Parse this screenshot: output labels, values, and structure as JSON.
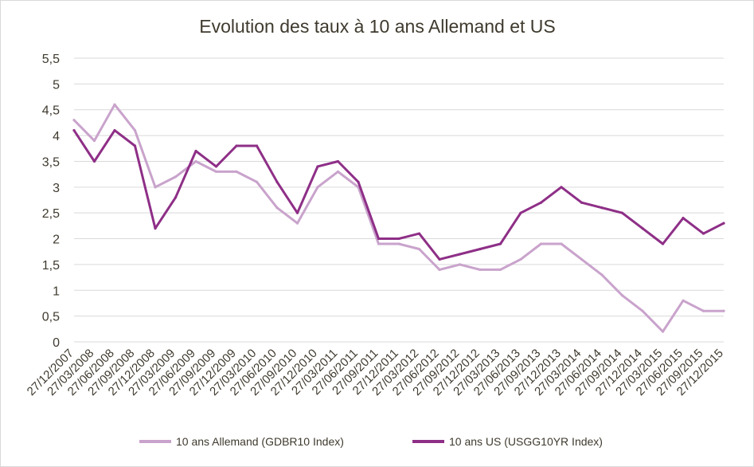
{
  "chart_data": {
    "type": "line",
    "title": "Evolution des taux à 10 ans Allemand et US",
    "xlabel": "",
    "ylabel": "",
    "ylim": [
      0,
      5.5
    ],
    "y_ticks": [
      "0",
      "0,5",
      "1",
      "1,5",
      "2",
      "2,5",
      "3",
      "3,5",
      "4",
      "4,5",
      "5",
      "5,5"
    ],
    "grid": true,
    "legend_position": "bottom",
    "categories": [
      "27/12/2007",
      "27/03/2008",
      "27/06/2008",
      "27/09/2008",
      "27/12/2008",
      "27/03/2009",
      "27/06/2009",
      "27/09/2009",
      "27/12/2009",
      "27/03/2010",
      "27/06/2010",
      "27/09/2010",
      "27/12/2010",
      "27/03/2011",
      "27/06/2011",
      "27/09/2011",
      "27/12/2011",
      "27/03/2012",
      "27/06/2012",
      "27/09/2012",
      "27/12/2012",
      "27/03/2013",
      "27/06/2013",
      "27/09/2013",
      "27/12/2013",
      "27/03/2014",
      "27/06/2014",
      "27/09/2014",
      "27/12/2014",
      "27/03/2015",
      "27/06/2015",
      "27/09/2015",
      "27/12/2015"
    ],
    "series": [
      {
        "name": "10 ans Allemand  (GDBR10 Index)",
        "color": "#c9a3cc",
        "values": [
          4.3,
          3.9,
          4.6,
          4.1,
          3.0,
          3.2,
          3.5,
          3.3,
          3.3,
          3.1,
          2.6,
          2.3,
          3.0,
          3.3,
          3.0,
          1.9,
          1.9,
          1.8,
          1.4,
          1.5,
          1.4,
          1.4,
          1.6,
          1.9,
          1.9,
          1.6,
          1.3,
          0.9,
          0.6,
          0.2,
          0.8,
          0.6,
          0.6
        ]
      },
      {
        "name": "10 ans US (USGG10YR Index)",
        "color": "#8e2f87",
        "values": [
          4.1,
          3.5,
          4.1,
          3.8,
          2.2,
          2.8,
          3.7,
          3.4,
          3.8,
          3.8,
          3.1,
          2.5,
          3.4,
          3.5,
          3.1,
          2.0,
          2.0,
          2.1,
          1.6,
          1.7,
          1.8,
          1.9,
          2.5,
          2.7,
          3.0,
          2.7,
          2.6,
          2.5,
          2.2,
          1.9,
          2.4,
          2.1,
          2.3
        ]
      }
    ]
  }
}
